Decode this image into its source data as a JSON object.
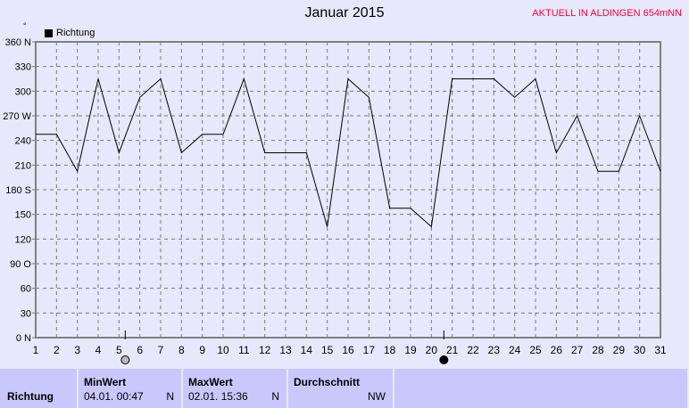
{
  "chart_data": {
    "type": "line",
    "title": "Januar 2015",
    "x": [
      1,
      2,
      3,
      4,
      5,
      6,
      7,
      8,
      9,
      10,
      11,
      12,
      13,
      14,
      15,
      16,
      17,
      18,
      19,
      20,
      21,
      22,
      23,
      24,
      25,
      26,
      27,
      28,
      29,
      30,
      31
    ],
    "series": [
      {
        "name": "Richtung",
        "values": [
          247.5,
          247.5,
          202.5,
          315,
          225,
          292.5,
          315,
          225,
          247.5,
          247.5,
          315,
          225,
          225,
          225,
          135,
          315,
          292.5,
          157.5,
          157.5,
          135,
          315,
          315,
          315,
          292.5,
          315,
          225,
          270,
          202.5,
          202.5,
          270,
          202.5
        ]
      }
    ],
    "xlim": [
      1,
      31
    ],
    "ylim": [
      0,
      360
    ],
    "yticks": [
      0,
      30,
      60,
      90,
      120,
      150,
      180,
      210,
      240,
      270,
      300,
      330,
      360
    ],
    "ytick_labels": [
      "0  N",
      "30",
      "60",
      "90  O",
      "120",
      "150",
      "180 S",
      "210",
      "240",
      "270 W",
      "300",
      "330",
      "360 N"
    ],
    "xtick_labels": [
      "1",
      "2",
      "3",
      "4",
      "5",
      "6",
      "7",
      "8",
      "9",
      "10",
      "11",
      "12",
      "13",
      "14",
      "15",
      "16",
      "17",
      "18",
      "19",
      "20",
      "21",
      "22",
      "23",
      "24",
      "25",
      "26",
      "27",
      "28",
      "29",
      "30",
      "31"
    ],
    "grid": true,
    "legend_placement": "top-left",
    "line_color": "#000000",
    "moon_markers": [
      {
        "day": 5.3,
        "phase": "full-moon"
      },
      {
        "day": 20.6,
        "phase": "new-moon"
      }
    ]
  },
  "header": {
    "station": "AKTUELL IN ALDINGEN 654mNN",
    "degree_mark": "°"
  },
  "summary": {
    "row_label": "Richtung",
    "min": {
      "label": "MinWert",
      "time": "04.01.  00:47",
      "value": "N"
    },
    "max": {
      "label": "MaxWert",
      "time": "02.01.  15:36",
      "value": "N"
    },
    "avg": {
      "label": "Durchschnitt",
      "value": "NW"
    }
  }
}
